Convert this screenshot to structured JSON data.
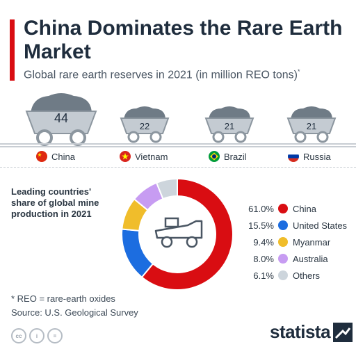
{
  "header": {
    "title": "China Dominates the Rare Earth Market",
    "subtitle": "Global rare earth reserves in 2021 (in million REO tons)",
    "subtitle_mark": "*"
  },
  "colors": {
    "accent": "#d90d12",
    "china": "#d90d12",
    "united_states": "#1c6de0",
    "myanmar": "#f0bd2b",
    "australia": "#c79cf2",
    "others": "#cdd5dc"
  },
  "reserves": {
    "items": [
      {
        "country": "China",
        "value": "44",
        "flag": "china-flag-icon"
      },
      {
        "country": "Vietnam",
        "value": "22",
        "flag": "vietnam-flag-icon"
      },
      {
        "country": "Brazil",
        "value": "21",
        "flag": "brazil-flag-icon"
      },
      {
        "country": "Russia",
        "value": "21",
        "flag": "russia-flag-icon"
      }
    ]
  },
  "production": {
    "label": "Leading countries' share of global mine production in 2021",
    "center_icon": "mining-truck-icon",
    "legend": [
      {
        "pct": "61.0%",
        "name": "China"
      },
      {
        "pct": "15.5%",
        "name": "United States"
      },
      {
        "pct": "9.4%",
        "name": "Myanmar"
      },
      {
        "pct": "8.0%",
        "name": "Australia"
      },
      {
        "pct": "6.1%",
        "name": "Others"
      }
    ]
  },
  "chart_data": [
    {
      "type": "bar",
      "title": "China Dominates the Rare Earth Market",
      "subtitle": "Global rare earth reserves in 2021 (in million REO tons)",
      "categories": [
        "China",
        "Vietnam",
        "Brazil",
        "Russia"
      ],
      "values": [
        44,
        22,
        21,
        21
      ],
      "ylabel": "million REO tons"
    },
    {
      "type": "pie",
      "title": "Leading countries' share of global mine production in 2021",
      "categories": [
        "China",
        "United States",
        "Myanmar",
        "Australia",
        "Others"
      ],
      "values": [
        61.0,
        15.5,
        9.4,
        8.0,
        6.1
      ],
      "colors": [
        "#d90d12",
        "#1c6de0",
        "#f0bd2b",
        "#c79cf2",
        "#cdd5dc"
      ]
    }
  ],
  "footer": {
    "note": "* REO = rare-earth oxides",
    "source": "Source: U.S. Geological Survey",
    "brand": "statista",
    "license_icons": [
      "cc-icon",
      "attribution-icon",
      "no-derivatives-icon"
    ],
    "license_glyphs": [
      "cc",
      "i",
      "="
    ]
  }
}
